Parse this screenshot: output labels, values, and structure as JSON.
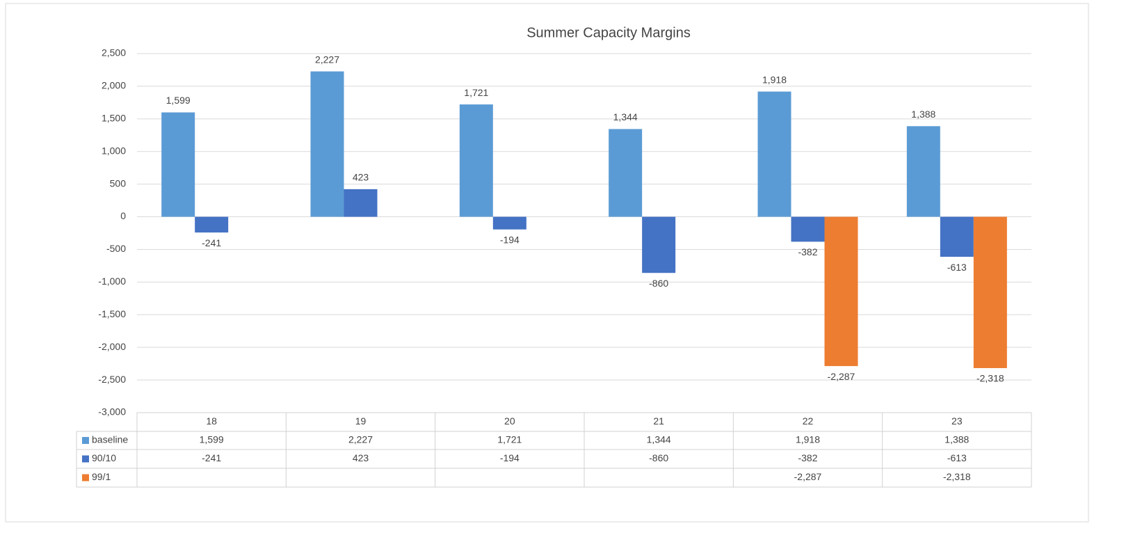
{
  "chart_data": {
    "type": "bar",
    "title": "Summer Capacity Margins",
    "categories": [
      "18",
      "19",
      "20",
      "21",
      "22",
      "23"
    ],
    "series": [
      {
        "name": "baseline",
        "color": "#5b9bd5",
        "values": [
          1599,
          2227,
          1721,
          1344,
          1918,
          1388
        ],
        "value_labels": [
          "1,599",
          "2,227",
          "1,721",
          "1,344",
          "1,918",
          "1,388"
        ]
      },
      {
        "name": "90/10",
        "color": "#4472c4",
        "values": [
          -241,
          423,
          -194,
          -860,
          -382,
          -613
        ],
        "value_labels": [
          "-241",
          "423",
          "-194",
          "-860",
          "-382",
          "-613"
        ]
      },
      {
        "name": "99/1",
        "color": "#ed7d31",
        "values": [
          null,
          null,
          null,
          null,
          -2287,
          -2318
        ],
        "value_labels": [
          null,
          null,
          null,
          null,
          "-2,287",
          "-2,318"
        ]
      }
    ],
    "ylim": [
      -3000,
      2500
    ],
    "yticks": [
      {
        "value": -3000,
        "label": "-3,000"
      },
      {
        "value": -2500,
        "label": "-2,500"
      },
      {
        "value": -2000,
        "label": "-2,000"
      },
      {
        "value": -1500,
        "label": "-1,500"
      },
      {
        "value": -1000,
        "label": "-1,000"
      },
      -500,
      0,
      500,
      {
        "value": 1000,
        "label": "1,000"
      },
      {
        "value": 1500,
        "label": "1,500"
      },
      {
        "value": 2000,
        "label": "2,000"
      },
      {
        "value": 2500,
        "label": "2,500"
      }
    ],
    "grid": true
  }
}
